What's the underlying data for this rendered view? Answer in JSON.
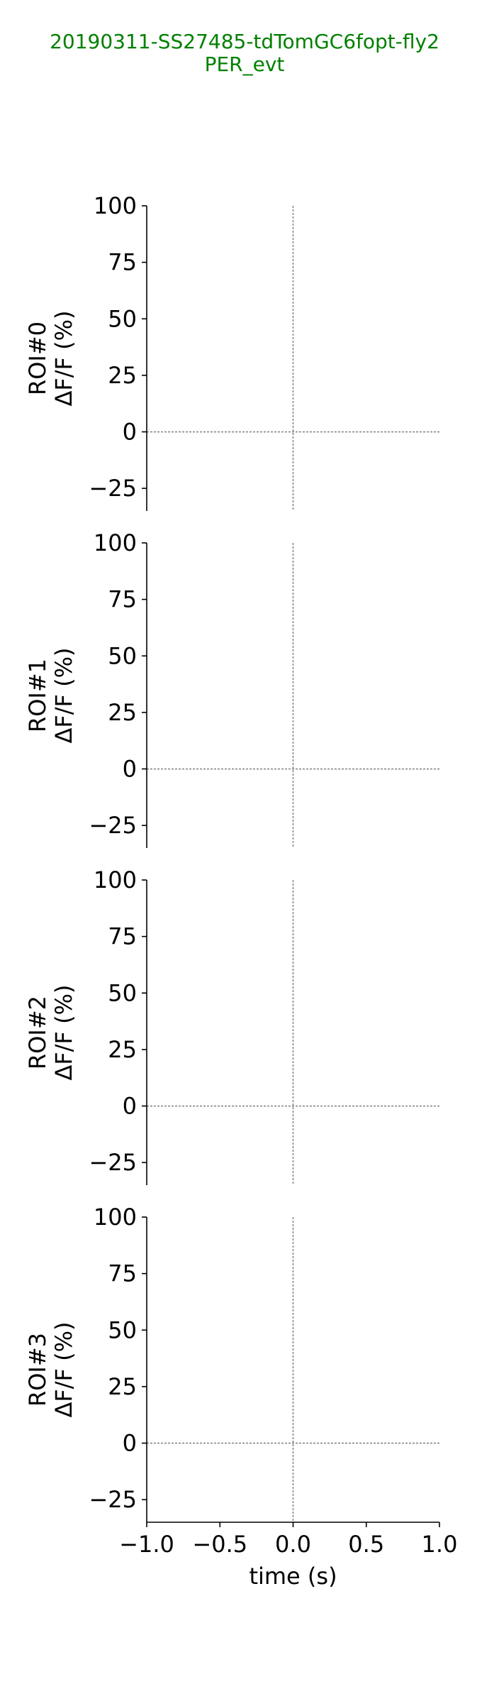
{
  "figure": {
    "title_line1": "20190311-SS27485-tdTomGC6fopt-fly2",
    "title_line2": "PER_evt",
    "title_color": "#008000"
  },
  "chart_data": [
    {
      "type": "line",
      "ylabel_line1": "ROI#0",
      "ylabel_line2": "ΔF/F (%)",
      "xlim": [
        -1.0,
        1.0
      ],
      "ylim": [
        -35,
        100
      ],
      "yticks": [
        100,
        75,
        50,
        25,
        0,
        -25
      ],
      "ytick_labels": [
        "100",
        "75",
        "50",
        "25",
        "0",
        "−25"
      ],
      "reference_lines": {
        "y": 0,
        "x": 0
      },
      "show_xaxis": false,
      "series": []
    },
    {
      "type": "line",
      "ylabel_line1": "ROI#1",
      "ylabel_line2": "ΔF/F (%)",
      "xlim": [
        -1.0,
        1.0
      ],
      "ylim": [
        -35,
        100
      ],
      "yticks": [
        100,
        75,
        50,
        25,
        0,
        -25
      ],
      "ytick_labels": [
        "100",
        "75",
        "50",
        "25",
        "0",
        "−25"
      ],
      "reference_lines": {
        "y": 0,
        "x": 0
      },
      "show_xaxis": false,
      "series": []
    },
    {
      "type": "line",
      "ylabel_line1": "ROI#2",
      "ylabel_line2": "ΔF/F (%)",
      "xlim": [
        -1.0,
        1.0
      ],
      "ylim": [
        -35,
        100
      ],
      "yticks": [
        100,
        75,
        50,
        25,
        0,
        -25
      ],
      "ytick_labels": [
        "100",
        "75",
        "50",
        "25",
        "0",
        "−25"
      ],
      "reference_lines": {
        "y": 0,
        "x": 0
      },
      "show_xaxis": false,
      "series": []
    },
    {
      "type": "line",
      "ylabel_line1": "ROI#3",
      "ylabel_line2": "ΔF/F (%)",
      "xlim": [
        -1.0,
        1.0
      ],
      "ylim": [
        -35,
        100
      ],
      "yticks": [
        100,
        75,
        50,
        25,
        0,
        -25
      ],
      "ytick_labels": [
        "100",
        "75",
        "50",
        "25",
        "0",
        "−25"
      ],
      "reference_lines": {
        "y": 0,
        "x": 0
      },
      "show_xaxis": true,
      "xticks": [
        -1.0,
        -0.5,
        0.0,
        0.5,
        1.0
      ],
      "xtick_labels": [
        "−1.0",
        "−0.5",
        "0.0",
        "0.5",
        "1.0"
      ],
      "xlabel": "time (s)",
      "series": []
    }
  ]
}
